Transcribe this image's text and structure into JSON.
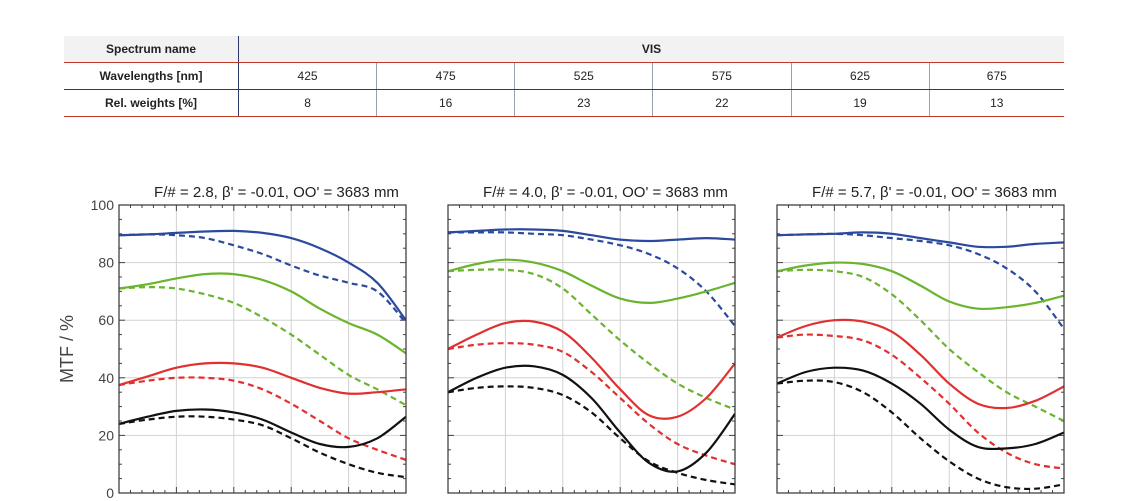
{
  "table": {
    "spectrum_label": "Spectrum name",
    "spectrum_value": "VIS",
    "wavelengths_label": "Wavelengths [nm]",
    "wavelengths": [
      "425",
      "475",
      "525",
      "575",
      "625",
      "675"
    ],
    "weights_label": "Rel. weights [%]",
    "weights": [
      "8",
      "16",
      "23",
      "22",
      "19",
      "13"
    ]
  },
  "colors": {
    "blue": "#2b4a9e",
    "green": "#6ab42e",
    "red": "#e03030",
    "black": "#111111"
  },
  "chart_data": [
    {
      "type": "line",
      "title": "F/# = 2.8, β' = -0.01, OO' = 3683 mm",
      "ylabel": "MTF / %",
      "ylim": [
        0,
        100
      ],
      "yticks": [
        "0",
        "20",
        "40",
        "60",
        "80",
        "100"
      ],
      "xlim": [
        0,
        10
      ],
      "grid": true,
      "series": [
        {
          "color": "blue",
          "dash": false,
          "x": [
            0,
            1,
            2,
            3,
            4,
            5,
            6,
            7,
            8,
            9,
            10
          ],
          "y": [
            89.5,
            89.8,
            90.3,
            90.8,
            91,
            90.3,
            88.5,
            85,
            80,
            73,
            60
          ]
        },
        {
          "color": "blue",
          "dash": true,
          "x": [
            0,
            1,
            2,
            3,
            4,
            5,
            6,
            7,
            8,
            9,
            10
          ],
          "y": [
            89.5,
            89.8,
            89.5,
            88.5,
            86,
            83,
            79,
            75.5,
            73,
            70,
            59
          ]
        },
        {
          "color": "green",
          "dash": false,
          "x": [
            0,
            1,
            2,
            3,
            4,
            5,
            6,
            7,
            8,
            9,
            10
          ],
          "y": [
            71,
            72.5,
            74.5,
            76,
            76,
            74,
            70,
            64,
            59,
            55,
            48.5
          ]
        },
        {
          "color": "green",
          "dash": true,
          "x": [
            0,
            1,
            2,
            3,
            4,
            5,
            6,
            7,
            8,
            9,
            10
          ],
          "y": [
            71,
            71.5,
            71,
            69,
            66,
            61,
            55,
            48,
            41,
            36,
            30.5
          ]
        },
        {
          "color": "red",
          "dash": false,
          "x": [
            0,
            1,
            2,
            3,
            4,
            5,
            6,
            7,
            8,
            9,
            10
          ],
          "y": [
            37.5,
            40.5,
            43.5,
            45,
            45,
            43.5,
            40,
            36.5,
            34.5,
            35,
            36
          ]
        },
        {
          "color": "red",
          "dash": true,
          "x": [
            0,
            1,
            2,
            3,
            4,
            5,
            6,
            7,
            8,
            9,
            10
          ],
          "y": [
            37.5,
            39,
            40,
            40,
            39,
            36,
            31,
            25,
            19,
            15,
            11.5
          ]
        },
        {
          "color": "black",
          "dash": false,
          "x": [
            0,
            1,
            2,
            3,
            4,
            5,
            6,
            7,
            8,
            9,
            10
          ],
          "y": [
            24,
            26.5,
            28.5,
            29,
            28,
            25.5,
            21,
            17,
            16,
            19,
            26.5
          ]
        },
        {
          "color": "black",
          "dash": true,
          "x": [
            0,
            1,
            2,
            3,
            4,
            5,
            6,
            7,
            8,
            9,
            10
          ],
          "y": [
            24,
            25.5,
            26.5,
            26.5,
            25.5,
            23.5,
            19,
            14,
            10,
            7,
            5.5
          ]
        }
      ]
    },
    {
      "type": "line",
      "title": "F/# = 4.0, β' = -0.01, OO' = 3683 mm",
      "ylim": [
        0,
        100
      ],
      "xlim": [
        0,
        10
      ],
      "grid": true,
      "series": [
        {
          "color": "blue",
          "dash": false,
          "x": [
            0,
            1,
            2,
            3,
            4,
            5,
            6,
            7,
            8,
            9,
            10
          ],
          "y": [
            90.5,
            91,
            91.5,
            91.5,
            91,
            89.5,
            88,
            87.5,
            88,
            88.5,
            88
          ]
        },
        {
          "color": "blue",
          "dash": true,
          "x": [
            0,
            1,
            2,
            3,
            4,
            5,
            6,
            7,
            8,
            9,
            10
          ],
          "y": [
            90.5,
            90.5,
            90.5,
            90,
            89.5,
            88,
            86,
            83,
            78,
            70,
            58
          ]
        },
        {
          "color": "green",
          "dash": false,
          "x": [
            0,
            1,
            2,
            3,
            4,
            5,
            6,
            7,
            8,
            9,
            10
          ],
          "y": [
            77,
            79.5,
            81,
            80,
            77,
            72,
            67.5,
            66,
            67.5,
            70,
            73
          ]
        },
        {
          "color": "green",
          "dash": true,
          "x": [
            0,
            1,
            2,
            3,
            4,
            5,
            6,
            7,
            8,
            9,
            10
          ],
          "y": [
            77,
            77.5,
            77.5,
            76,
            71,
            62,
            53,
            45,
            38,
            33,
            29
          ]
        },
        {
          "color": "red",
          "dash": false,
          "x": [
            0,
            1,
            2,
            3,
            4,
            5,
            6,
            7,
            8,
            9,
            10
          ],
          "y": [
            50,
            55,
            59,
            59.5,
            56,
            47,
            36,
            27,
            26.5,
            33,
            45
          ]
        },
        {
          "color": "red",
          "dash": true,
          "x": [
            0,
            1,
            2,
            3,
            4,
            5,
            6,
            7,
            8,
            9,
            10
          ],
          "y": [
            50,
            51.5,
            52,
            51.5,
            49,
            42,
            33,
            24,
            17,
            13,
            10
          ]
        },
        {
          "color": "black",
          "dash": false,
          "x": [
            0,
            1,
            2,
            3,
            4,
            5,
            6,
            7,
            8,
            9,
            10
          ],
          "y": [
            35,
            40,
            43.5,
            44,
            41,
            33,
            21,
            10.5,
            7.5,
            14,
            27.5
          ]
        },
        {
          "color": "black",
          "dash": true,
          "x": [
            0,
            1,
            2,
            3,
            4,
            5,
            6,
            7,
            8,
            9,
            10
          ],
          "y": [
            35,
            36.5,
            37,
            36.5,
            34,
            28,
            19,
            11,
            7,
            4.5,
            3
          ]
        }
      ]
    },
    {
      "type": "line",
      "title": "F/# = 5.7, β' = -0.01, OO' = 3683 mm",
      "ylim": [
        0,
        100
      ],
      "xlim": [
        0,
        10
      ],
      "grid": true,
      "series": [
        {
          "color": "blue",
          "dash": false,
          "x": [
            0,
            1,
            2,
            3,
            4,
            5,
            6,
            7,
            8,
            9,
            10
          ],
          "y": [
            89.5,
            89.8,
            90,
            90.5,
            90,
            88.5,
            87,
            85.5,
            85.5,
            86.5,
            87
          ]
        },
        {
          "color": "blue",
          "dash": true,
          "x": [
            0,
            1,
            2,
            3,
            4,
            5,
            6,
            7,
            8,
            9,
            10
          ],
          "y": [
            89.5,
            89.8,
            90,
            89.5,
            88.5,
            87.5,
            86,
            83,
            78,
            70,
            57
          ]
        },
        {
          "color": "green",
          "dash": false,
          "x": [
            0,
            1,
            2,
            3,
            4,
            5,
            6,
            7,
            8,
            9,
            10
          ],
          "y": [
            77,
            79,
            80,
            79.5,
            77,
            72,
            66.5,
            64,
            64.5,
            66,
            68.5
          ]
        },
        {
          "color": "green",
          "dash": true,
          "x": [
            0,
            1,
            2,
            3,
            4,
            5,
            6,
            7,
            8,
            9,
            10
          ],
          "y": [
            77,
            77.5,
            77,
            75,
            69,
            60,
            50,
            42,
            35,
            30,
            25
          ]
        },
        {
          "color": "red",
          "dash": false,
          "x": [
            0,
            1,
            2,
            3,
            4,
            5,
            6,
            7,
            8,
            9,
            10
          ],
          "y": [
            54,
            58,
            60,
            59.5,
            56,
            48,
            38,
            31,
            29.5,
            32,
            37
          ]
        },
        {
          "color": "red",
          "dash": true,
          "x": [
            0,
            1,
            2,
            3,
            4,
            5,
            6,
            7,
            8,
            9,
            10
          ],
          "y": [
            54,
            55,
            54.5,
            53,
            48,
            40,
            31,
            21,
            14,
            10,
            8.5
          ]
        },
        {
          "color": "black",
          "dash": false,
          "x": [
            0,
            1,
            2,
            3,
            4,
            5,
            6,
            7,
            8,
            9,
            10
          ],
          "y": [
            38,
            42,
            43.5,
            42.5,
            38,
            31,
            22,
            16,
            15.5,
            17,
            21
          ]
        },
        {
          "color": "black",
          "dash": true,
          "x": [
            0,
            1,
            2,
            3,
            4,
            5,
            6,
            7,
            8,
            9,
            10
          ],
          "y": [
            38,
            39,
            38.5,
            35,
            28,
            19,
            11,
            5,
            2,
            1.5,
            3
          ]
        }
      ]
    }
  ]
}
